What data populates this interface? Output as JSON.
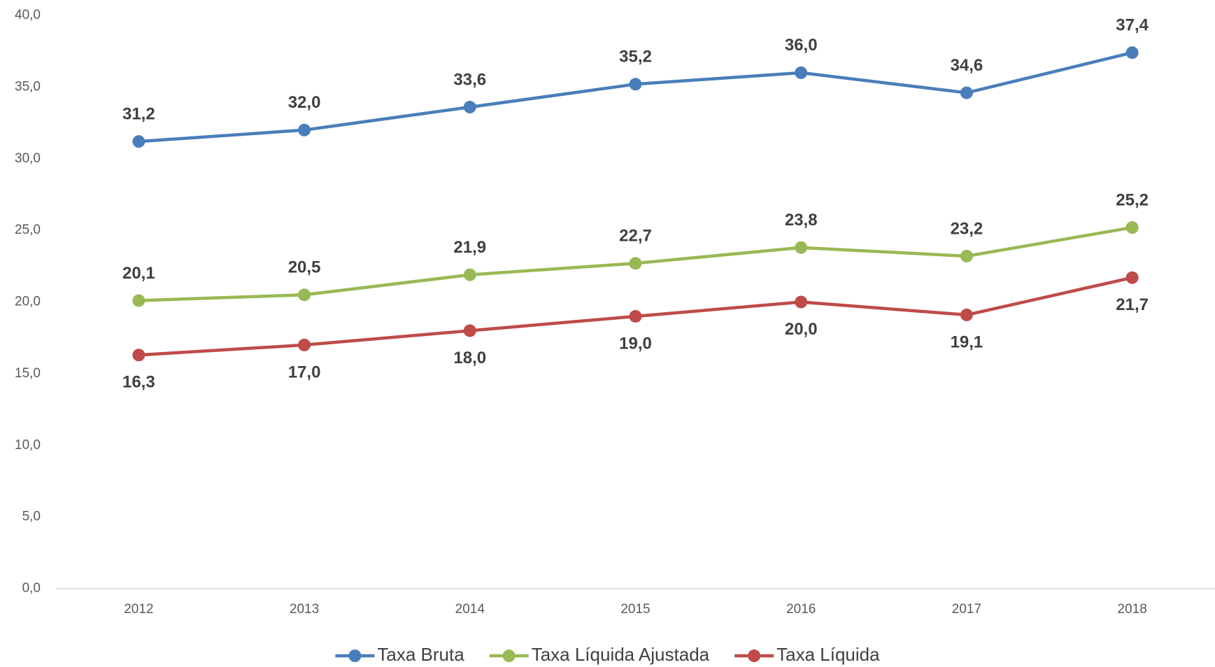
{
  "chart_data": {
    "type": "line",
    "categories": [
      "2012",
      "2013",
      "2014",
      "2015",
      "2016",
      "2017",
      "2018"
    ],
    "series": [
      {
        "name": "Taxa Bruta",
        "color": "#4a7ebb",
        "values": [
          31.2,
          32.0,
          33.6,
          35.2,
          36.0,
          34.6,
          37.4
        ],
        "value_labels": [
          "31,2",
          "32,0",
          "33,6",
          "35,2",
          "36,0",
          "34,6",
          "37,4"
        ]
      },
      {
        "name": "Taxa Líquida Ajustada",
        "color": "#98b954",
        "values": [
          20.1,
          20.5,
          21.9,
          22.7,
          23.8,
          23.2,
          25.2
        ],
        "value_labels": [
          "20,1",
          "20,5",
          "21,9",
          "22,7",
          "23,8",
          "23,2",
          "25,2"
        ]
      },
      {
        "name": "Taxa Líquida",
        "color": "#be4b48",
        "values": [
          16.3,
          17.0,
          18.0,
          19.0,
          20.0,
          19.1,
          21.7
        ],
        "value_labels": [
          "16,3",
          "17,0",
          "18,0",
          "19,0",
          "20,0",
          "19,1",
          "21,7"
        ]
      }
    ],
    "ylim": [
      0,
      40
    ],
    "yticks": [
      {
        "value": 0,
        "label": "0,0"
      },
      {
        "value": 5,
        "label": "5,0"
      },
      {
        "value": 10,
        "label": "10,0"
      },
      {
        "value": 15,
        "label": "15,0"
      },
      {
        "value": 20,
        "label": "20,0"
      },
      {
        "value": 25,
        "label": "25,0"
      },
      {
        "value": 30,
        "label": "30,0"
      },
      {
        "value": 35,
        "label": "35,0"
      },
      {
        "value": 40,
        "label": "40,0"
      }
    ],
    "grid": false,
    "legend": "bottom"
  }
}
